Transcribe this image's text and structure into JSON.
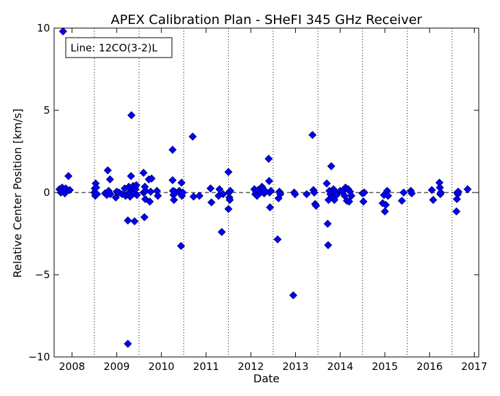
{
  "chart_data": {
    "type": "scatter",
    "title": "APEX Calibration Plan - SHeFI 345 GHz Receiver",
    "xlabel": "Date",
    "ylabel": "Relative Center Position [km/s]",
    "annotation": "Line: 12CO(3-2)L",
    "xlim": [
      2007.6,
      2017.1
    ],
    "ylim": [
      -10,
      10
    ],
    "x_ticks": [
      2008,
      2009,
      2010,
      2011,
      2012,
      2013,
      2014,
      2015,
      2016,
      2017
    ],
    "x_tick_labels": [
      "2008",
      "2009",
      "2010",
      "2011",
      "2012",
      "2013",
      "2014",
      "2015",
      "2016",
      "2017"
    ],
    "y_ticks": [
      -10,
      -5,
      0,
      5,
      10
    ],
    "y_tick_labels": [
      "−10",
      "−5",
      "0",
      "5",
      "10"
    ],
    "vertical_dotted_lines": [
      2008.5,
      2009.5,
      2010.5,
      2011.5,
      2012.5,
      2013.5,
      2014.5,
      2015.5,
      2016.5
    ],
    "reference_line_y": 0,
    "marker": {
      "shape": "diamond",
      "fill": "#0000ff",
      "edge": "#000080"
    },
    "points": [
      [
        2007.72,
        0.2
      ],
      [
        2007.75,
        0.0
      ],
      [
        2007.78,
        0.3
      ],
      [
        2007.8,
        9.8
      ],
      [
        2007.82,
        0.1
      ],
      [
        2007.84,
        -0.05
      ],
      [
        2007.86,
        0.25
      ],
      [
        2007.92,
        1.0
      ],
      [
        2007.95,
        0.15
      ],
      [
        2008.5,
        0.0
      ],
      [
        2008.51,
        0.25
      ],
      [
        2008.52,
        -0.2
      ],
      [
        2008.53,
        0.55
      ],
      [
        2008.54,
        0.3
      ],
      [
        2008.56,
        -0.1
      ],
      [
        2008.74,
        -0.05
      ],
      [
        2008.78,
        -0.15
      ],
      [
        2008.82,
        0.1
      ],
      [
        2008.8,
        1.35
      ],
      [
        2008.85,
        0.8
      ],
      [
        2008.86,
        -0.1
      ],
      [
        2008.98,
        -0.3
      ],
      [
        2009.0,
        0.05
      ],
      [
        2009.05,
        0.0
      ],
      [
        2009.12,
        -0.1
      ],
      [
        2009.18,
        0.25
      ],
      [
        2009.2,
        -0.2
      ],
      [
        2009.25,
        -1.7
      ],
      [
        2009.25,
        -9.2
      ],
      [
        2009.27,
        0.35
      ],
      [
        2009.28,
        0.0
      ],
      [
        2009.3,
        -0.25
      ],
      [
        2009.32,
        1.0
      ],
      [
        2009.33,
        4.7
      ],
      [
        2009.35,
        0.1
      ],
      [
        2009.37,
        0.4
      ],
      [
        2009.38,
        -0.05
      ],
      [
        2009.4,
        -1.75
      ],
      [
        2009.42,
        0.2
      ],
      [
        2009.44,
        0.45
      ],
      [
        2009.45,
        -0.15
      ],
      [
        2009.6,
        1.2
      ],
      [
        2009.6,
        0.0
      ],
      [
        2009.62,
        -1.5
      ],
      [
        2009.63,
        0.35
      ],
      [
        2009.64,
        -0.4
      ],
      [
        2009.65,
        0.1
      ],
      [
        2009.72,
        0.8
      ],
      [
        2009.74,
        -0.55
      ],
      [
        2009.76,
        0.05
      ],
      [
        2009.78,
        0.85
      ],
      [
        2009.9,
        0.1
      ],
      [
        2009.92,
        -0.2
      ],
      [
        2010.25,
        2.6
      ],
      [
        2010.25,
        0.75
      ],
      [
        2010.26,
        0.1
      ],
      [
        2010.27,
        -0.15
      ],
      [
        2010.28,
        -0.45
      ],
      [
        2010.3,
        0.05
      ],
      [
        2010.4,
        0.1
      ],
      [
        2010.42,
        -0.05
      ],
      [
        2010.44,
        -3.25
      ],
      [
        2010.45,
        0.6
      ],
      [
        2010.46,
        -0.2
      ],
      [
        2010.48,
        0.0
      ],
      [
        2010.7,
        3.4
      ],
      [
        2010.72,
        -0.25
      ],
      [
        2010.85,
        -0.2
      ],
      [
        2011.1,
        0.25
      ],
      [
        2011.12,
        -0.6
      ],
      [
        2011.28,
        -0.2
      ],
      [
        2011.3,
        0.2
      ],
      [
        2011.35,
        -2.4
      ],
      [
        2011.38,
        -0.1
      ],
      [
        2011.5,
        1.25
      ],
      [
        2011.51,
        0.0
      ],
      [
        2011.52,
        -0.3
      ],
      [
        2011.53,
        -0.45
      ],
      [
        2011.54,
        0.1
      ],
      [
        2011.5,
        -1.0
      ],
      [
        2012.08,
        0.2
      ],
      [
        2012.1,
        -0.1
      ],
      [
        2012.12,
        0.05
      ],
      [
        2012.14,
        -0.2
      ],
      [
        2012.16,
        0.15
      ],
      [
        2012.22,
        0.0
      ],
      [
        2012.25,
        0.35
      ],
      [
        2012.27,
        0.2
      ],
      [
        2012.3,
        -0.05
      ],
      [
        2012.32,
        0.1
      ],
      [
        2012.4,
        2.05
      ],
      [
        2012.41,
        0.7
      ],
      [
        2012.42,
        0.0
      ],
      [
        2012.43,
        -0.9
      ],
      [
        2012.45,
        0.1
      ],
      [
        2012.6,
        -2.85
      ],
      [
        2012.62,
        -0.35
      ],
      [
        2012.64,
        0.05
      ],
      [
        2012.66,
        -0.1
      ],
      [
        2012.95,
        -6.25
      ],
      [
        2012.97,
        0.0
      ],
      [
        2012.99,
        -0.1
      ],
      [
        2013.25,
        -0.1
      ],
      [
        2013.38,
        3.5
      ],
      [
        2013.4,
        0.15
      ],
      [
        2013.42,
        0.0
      ],
      [
        2013.44,
        -0.7
      ],
      [
        2013.46,
        -0.8
      ],
      [
        2013.7,
        0.55
      ],
      [
        2013.72,
        -1.9
      ],
      [
        2013.73,
        -3.2
      ],
      [
        2013.74,
        -0.45
      ],
      [
        2013.76,
        0.1
      ],
      [
        2013.78,
        -0.1
      ],
      [
        2013.8,
        1.6
      ],
      [
        2013.82,
        -0.3
      ],
      [
        2013.85,
        0.2
      ],
      [
        2013.87,
        -0.45
      ],
      [
        2013.9,
        0.0
      ],
      [
        2013.92,
        -0.15
      ],
      [
        2014.0,
        0.1
      ],
      [
        2014.05,
        0.05
      ],
      [
        2014.1,
        -0.2
      ],
      [
        2014.12,
        0.3
      ],
      [
        2014.15,
        -0.5
      ],
      [
        2014.18,
        0.2
      ],
      [
        2014.2,
        -0.55
      ],
      [
        2014.22,
        0.05
      ],
      [
        2014.25,
        -0.2
      ],
      [
        2014.5,
        -0.05
      ],
      [
        2014.52,
        -0.55
      ],
      [
        2014.54,
        0.0
      ],
      [
        2014.95,
        -0.65
      ],
      [
        2014.98,
        -0.15
      ],
      [
        2015.0,
        -1.15
      ],
      [
        2015.02,
        -0.75
      ],
      [
        2015.05,
        0.1
      ],
      [
        2015.07,
        -0.2
      ],
      [
        2015.38,
        -0.5
      ],
      [
        2015.42,
        0.0
      ],
      [
        2015.58,
        0.1
      ],
      [
        2015.6,
        -0.05
      ],
      [
        2016.05,
        0.15
      ],
      [
        2016.08,
        -0.45
      ],
      [
        2016.22,
        0.6
      ],
      [
        2016.23,
        0.3
      ],
      [
        2016.24,
        -0.1
      ],
      [
        2016.25,
        0.0
      ],
      [
        2016.6,
        -1.15
      ],
      [
        2016.61,
        -0.4
      ],
      [
        2016.62,
        0.0
      ],
      [
        2016.63,
        -0.1
      ],
      [
        2016.64,
        0.05
      ],
      [
        2016.85,
        0.2
      ]
    ]
  }
}
